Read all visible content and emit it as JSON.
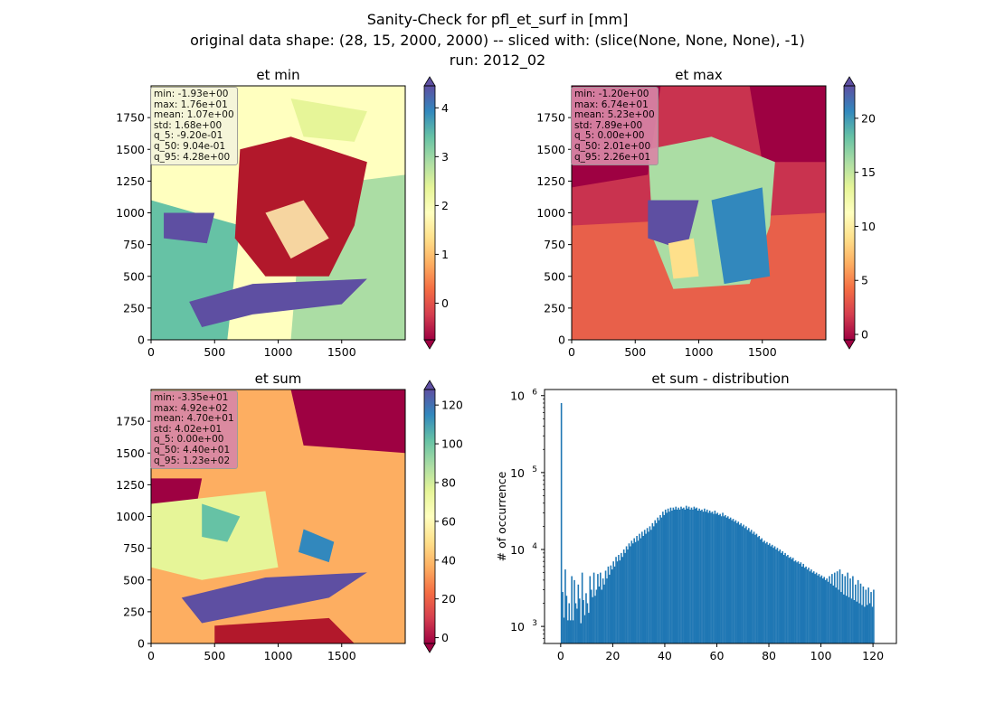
{
  "figure": {
    "title_lines": [
      "Sanity-Check for pfl_et_surf in [mm]",
      "original data shape: (28, 15, 2000, 2000) -- sliced with: (slice(None, None, None), -1)",
      "run: 2012_02"
    ]
  },
  "colors": {
    "colormap": [
      "#9e0142",
      "#d53e4f",
      "#f46d43",
      "#fdae61",
      "#fee08b",
      "#ffffbf",
      "#e6f598",
      "#abdda4",
      "#66c2a5",
      "#3288bd",
      "#5e4fa2"
    ],
    "histogram_bar": "#1f77b4"
  },
  "chart_data": [
    {
      "type": "heatmap",
      "title": "et min",
      "x_ticks": [
        "0",
        "500",
        "1000",
        "1500"
      ],
      "y_ticks": [
        "0",
        "250",
        "500",
        "750",
        "1000",
        "1250",
        "1500",
        "1750"
      ],
      "xlim": [
        0,
        2000
      ],
      "ylim": [
        0,
        2000
      ],
      "colorbar": {
        "min": -0.75,
        "max": 4.45,
        "ticks": [
          -0.0,
          1,
          2,
          3,
          4
        ],
        "tick_labels": [
          "0",
          "1",
          "2",
          "3",
          "4"
        ],
        "extend": "both"
      },
      "stats": [
        "min: -1.93e+00",
        "max: 1.76e+01",
        "mean: 1.07e+00",
        "std: 1.68e+00",
        "q_5: -9.20e-01",
        "q_50: 9.04e-01",
        "q_95: 4.28e+00"
      ],
      "stats_box_color": "#f5f5dc"
    },
    {
      "type": "heatmap",
      "title": "et max",
      "x_ticks": [
        "0",
        "500",
        "1000",
        "1500"
      ],
      "y_ticks": [
        "0",
        "250",
        "500",
        "750",
        "1000",
        "1250",
        "1500",
        "1750"
      ],
      "xlim": [
        0,
        2000
      ],
      "ylim": [
        0,
        2000
      ],
      "colorbar": {
        "min": -0.5,
        "max": 23,
        "ticks": [
          0,
          5,
          10,
          15,
          20
        ],
        "tick_labels": [
          "0",
          "5",
          "10",
          "15",
          "20"
        ],
        "extend": "both"
      },
      "stats": [
        "min: -1.20e+00",
        "max: 6.74e+01",
        "mean: 5.23e+00",
        "std: 7.89e+00",
        "q_5: 0.00e+00",
        "q_50: 2.01e+00",
        "q_95: 2.26e+01"
      ],
      "stats_box_color": "#d987a6"
    },
    {
      "type": "heatmap",
      "title": "et sum",
      "x_ticks": [
        "0",
        "500",
        "1000",
        "1500"
      ],
      "y_ticks": [
        "0",
        "250",
        "500",
        "750",
        "1000",
        "1250",
        "1500",
        "1750"
      ],
      "xlim": [
        0,
        2000
      ],
      "ylim": [
        0,
        2000
      ],
      "colorbar": {
        "min": -3,
        "max": 128,
        "ticks": [
          0,
          20,
          40,
          60,
          80,
          100,
          120
        ],
        "tick_labels": [
          "0",
          "20",
          "40",
          "60",
          "80",
          "100",
          "120"
        ],
        "extend": "both"
      },
      "stats": [
        "min: -3.35e+01",
        "max: 4.92e+02",
        "mean: 4.70e+01",
        "std: 4.02e+01",
        "q_5: 0.00e+00",
        "q_50: 4.40e+01",
        "q_95: 1.23e+02"
      ],
      "stats_box_color": "#d987a6"
    },
    {
      "type": "bar",
      "title": "et sum - distribution",
      "ylabel": "# of occurrence",
      "xlabel": "",
      "yscale": "log",
      "x_ticks": [
        0,
        20,
        40,
        60,
        80,
        100,
        120
      ],
      "x_tick_labels": [
        "0",
        "20",
        "40",
        "60",
        "80",
        "100",
        "120"
      ],
      "y_ticks": [
        1000,
        10000,
        100000,
        1000000
      ],
      "y_tick_labels": [
        "10",
        "10",
        "10",
        "10"
      ],
      "y_tick_exponents": [
        "3",
        "4",
        "5",
        "6"
      ],
      "xlim": [
        -6.2,
        129
      ],
      "ylim": [
        600,
        1200000
      ],
      "bin_start": 0,
      "bin_width": 0.5,
      "values": [
        800000,
        2800,
        1300,
        5500,
        2500,
        1200,
        2000,
        1200,
        4500,
        1200,
        4000,
        2000,
        1700,
        3500,
        2300,
        1100,
        5000,
        2200,
        1400,
        2700,
        2000,
        1500,
        4500,
        3000,
        2400,
        5000,
        2500,
        3000,
        4800,
        3300,
        5000,
        3000,
        4200,
        3500,
        5300,
        4200,
        6000,
        4700,
        6200,
        5500,
        7000,
        6000,
        8000,
        7000,
        8500,
        7200,
        9000,
        8000,
        10000,
        9000,
        11000,
        10000,
        12000,
        11000,
        13000,
        12000,
        14000,
        12500,
        15000,
        13000,
        16000,
        14000,
        17000,
        15000,
        18000,
        16000,
        19000,
        17000,
        20000,
        18000,
        22000,
        20000,
        24000,
        22000,
        26000,
        24000,
        28000,
        26000,
        31000,
        28000,
        33000,
        30000,
        34000,
        31000,
        35000,
        32000,
        35000,
        33000,
        36000,
        33000,
        35000,
        33000,
        36000,
        34000,
        35000,
        33000,
        37000,
        34000,
        36000,
        33000,
        35000,
        33000,
        36000,
        34000,
        35000,
        32000,
        34000,
        32000,
        33000,
        31000,
        34000,
        31000,
        33000,
        30000,
        32000,
        30000,
        31000,
        29000,
        32000,
        29000,
        30000,
        28000,
        29000,
        27000,
        30000,
        27000,
        28000,
        26000,
        27000,
        25000,
        26000,
        24000,
        25000,
        23000,
        24000,
        22000,
        23000,
        21000,
        22000,
        20000,
        21000,
        19000,
        20000,
        18000,
        19000,
        17000,
        18000,
        16000,
        17000,
        15500,
        16000,
        14500,
        15000,
        13500,
        14000,
        12500,
        13000,
        12000,
        12500,
        11500,
        12000,
        11000,
        11500,
        10500,
        11000,
        10000,
        10500,
        9500,
        10000,
        9000,
        9500,
        8500,
        9000,
        8200,
        8500,
        7800,
        8000,
        7500,
        7800,
        7000,
        7200,
        6800,
        7000,
        6500,
        6800,
        6000,
        6500,
        5800,
        6000,
        5500,
        5800,
        5200,
        5500,
        5000,
        5200,
        4800,
        5000,
        4600,
        4800,
        4400,
        4600,
        4200,
        4400,
        4000,
        4200,
        3800,
        4500,
        3600,
        4800,
        3400,
        5000,
        3200,
        5200,
        3000,
        5500,
        2800,
        4800,
        2600,
        4500,
        2500,
        5000,
        2400,
        4200,
        2300,
        4500,
        2200,
        3500,
        2100,
        4000,
        2000,
        3600,
        1900,
        3300,
        1800,
        3000,
        1900,
        3200,
        2000,
        2800,
        1800,
        3000
      ]
    }
  ]
}
